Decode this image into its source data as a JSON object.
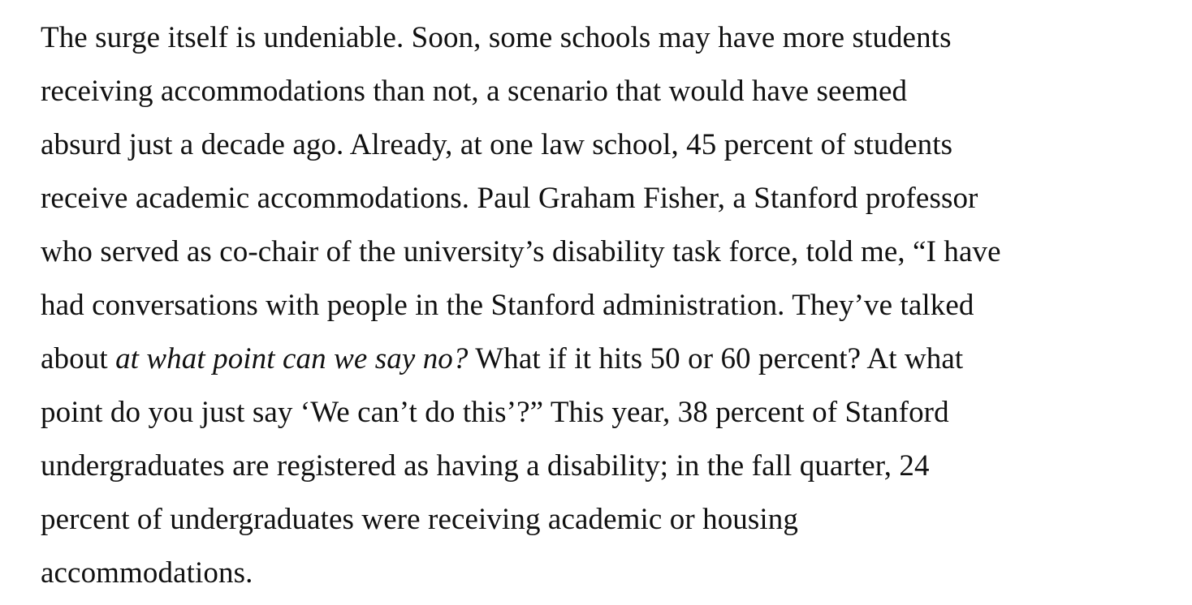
{
  "article": {
    "paragraph": {
      "lines": [
        "The surge itself is undeniable. Soon, some schools may have more students",
        "receiving accommodations than not, a scenario that would have seemed",
        "absurd just a decade ago. Already, at one law school, 45 percent of students",
        "receive academic accommodations. Paul Graham Fisher, a Stanford professor",
        "who served as co-chair of the university’s disability task force, told me, “I have",
        "had conversations with people in the Stanford administration. They’ve talked",
        {
          "before": "about ",
          "italic": "at what point can we say no?",
          "after": " What if it hits 50 or 60 percent? At what"
        },
        "point do you just say ‘We can’t do this’?” This year, 38 percent of Stanford",
        "undergraduates are registered as having a disability; in the fall quarter, 24",
        "percent of undergraduates were receiving academic or housing",
        "accommodations."
      ]
    }
  }
}
